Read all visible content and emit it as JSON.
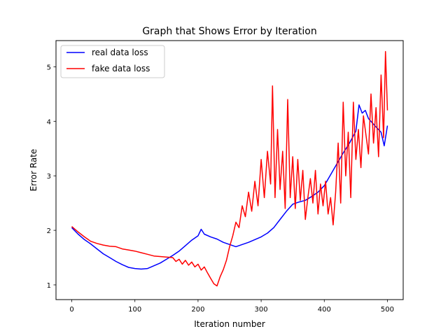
{
  "chart_data": {
    "type": "line",
    "title": "Graph that Shows Error by Iteration",
    "xlabel": "Iteration number",
    "ylabel": "Error Rate",
    "xlim": [
      -25,
      525
    ],
    "ylim": [
      0.73,
      5.48
    ],
    "x_ticks": [
      0,
      100,
      200,
      300,
      400,
      500
    ],
    "y_ticks": [
      1,
      2,
      3,
      4,
      5
    ],
    "legend_position": "top-left",
    "grid": false,
    "series": [
      {
        "name": "real data loss",
        "color": "#0000ff",
        "points": [
          [
            0,
            2.05
          ],
          [
            10,
            1.93
          ],
          [
            20,
            1.83
          ],
          [
            30,
            1.75
          ],
          [
            40,
            1.66
          ],
          [
            50,
            1.57
          ],
          [
            60,
            1.5
          ],
          [
            70,
            1.43
          ],
          [
            80,
            1.37
          ],
          [
            90,
            1.32
          ],
          [
            100,
            1.3
          ],
          [
            110,
            1.29
          ],
          [
            120,
            1.3
          ],
          [
            130,
            1.35
          ],
          [
            140,
            1.4
          ],
          [
            150,
            1.47
          ],
          [
            160,
            1.54
          ],
          [
            170,
            1.62
          ],
          [
            180,
            1.72
          ],
          [
            190,
            1.82
          ],
          [
            200,
            1.9
          ],
          [
            205,
            2.02
          ],
          [
            210,
            1.93
          ],
          [
            220,
            1.88
          ],
          [
            230,
            1.84
          ],
          [
            240,
            1.78
          ],
          [
            250,
            1.74
          ],
          [
            260,
            1.7
          ],
          [
            270,
            1.74
          ],
          [
            280,
            1.78
          ],
          [
            290,
            1.83
          ],
          [
            300,
            1.88
          ],
          [
            310,
            1.95
          ],
          [
            320,
            2.05
          ],
          [
            330,
            2.2
          ],
          [
            340,
            2.35
          ],
          [
            350,
            2.48
          ],
          [
            360,
            2.52
          ],
          [
            370,
            2.55
          ],
          [
            380,
            2.62
          ],
          [
            390,
            2.7
          ],
          [
            400,
            2.82
          ],
          [
            410,
            3.02
          ],
          [
            420,
            3.22
          ],
          [
            430,
            3.42
          ],
          [
            440,
            3.6
          ],
          [
            450,
            3.82
          ],
          [
            455,
            4.3
          ],
          [
            460,
            4.15
          ],
          [
            465,
            4.2
          ],
          [
            470,
            4.05
          ],
          [
            480,
            3.92
          ],
          [
            490,
            3.8
          ],
          [
            495,
            3.55
          ],
          [
            500,
            3.92
          ]
        ]
      },
      {
        "name": "fake data loss",
        "color": "#ff0000",
        "points": [
          [
            0,
            2.07
          ],
          [
            10,
            1.97
          ],
          [
            20,
            1.88
          ],
          [
            30,
            1.8
          ],
          [
            40,
            1.76
          ],
          [
            50,
            1.73
          ],
          [
            60,
            1.71
          ],
          [
            70,
            1.7
          ],
          [
            80,
            1.66
          ],
          [
            90,
            1.64
          ],
          [
            100,
            1.62
          ],
          [
            110,
            1.59
          ],
          [
            120,
            1.56
          ],
          [
            130,
            1.53
          ],
          [
            140,
            1.52
          ],
          [
            150,
            1.51
          ],
          [
            160,
            1.5
          ],
          [
            165,
            1.43
          ],
          [
            170,
            1.47
          ],
          [
            175,
            1.38
          ],
          [
            180,
            1.45
          ],
          [
            185,
            1.36
          ],
          [
            190,
            1.42
          ],
          [
            195,
            1.33
          ],
          [
            200,
            1.38
          ],
          [
            205,
            1.27
          ],
          [
            210,
            1.33
          ],
          [
            215,
            1.22
          ],
          [
            220,
            1.12
          ],
          [
            225,
            1.02
          ],
          [
            230,
            0.98
          ],
          [
            235,
            1.15
          ],
          [
            240,
            1.28
          ],
          [
            245,
            1.45
          ],
          [
            250,
            1.7
          ],
          [
            255,
            1.9
          ],
          [
            260,
            2.15
          ],
          [
            265,
            2.05
          ],
          [
            270,
            2.45
          ],
          [
            275,
            2.25
          ],
          [
            280,
            2.7
          ],
          [
            285,
            2.35
          ],
          [
            290,
            2.9
          ],
          [
            295,
            2.45
          ],
          [
            300,
            3.3
          ],
          [
            305,
            2.6
          ],
          [
            310,
            3.45
          ],
          [
            315,
            2.85
          ],
          [
            318,
            4.65
          ],
          [
            322,
            2.6
          ],
          [
            326,
            3.85
          ],
          [
            330,
            2.75
          ],
          [
            334,
            3.45
          ],
          [
            338,
            2.4
          ],
          [
            342,
            4.4
          ],
          [
            346,
            2.6
          ],
          [
            350,
            3.35
          ],
          [
            354,
            2.4
          ],
          [
            358,
            3.3
          ],
          [
            362,
            2.55
          ],
          [
            366,
            3.1
          ],
          [
            370,
            2.2
          ],
          [
            374,
            2.6
          ],
          [
            378,
            2.95
          ],
          [
            382,
            2.5
          ],
          [
            386,
            3.1
          ],
          [
            390,
            2.3
          ],
          [
            394,
            2.85
          ],
          [
            398,
            2.45
          ],
          [
            402,
            2.9
          ],
          [
            406,
            2.3
          ],
          [
            410,
            2.6
          ],
          [
            414,
            2.1
          ],
          [
            418,
            2.7
          ],
          [
            422,
            3.6
          ],
          [
            426,
            2.5
          ],
          [
            430,
            4.35
          ],
          [
            434,
            3.0
          ],
          [
            438,
            3.8
          ],
          [
            442,
            2.6
          ],
          [
            446,
            4.35
          ],
          [
            450,
            3.3
          ],
          [
            454,
            3.85
          ],
          [
            458,
            3.15
          ],
          [
            462,
            4.1
          ],
          [
            466,
            3.75
          ],
          [
            470,
            3.4
          ],
          [
            474,
            4.5
          ],
          [
            478,
            3.6
          ],
          [
            482,
            4.25
          ],
          [
            486,
            3.35
          ],
          [
            490,
            4.85
          ],
          [
            494,
            3.7
          ],
          [
            497,
            5.28
          ],
          [
            500,
            4.2
          ]
        ]
      }
    ]
  }
}
